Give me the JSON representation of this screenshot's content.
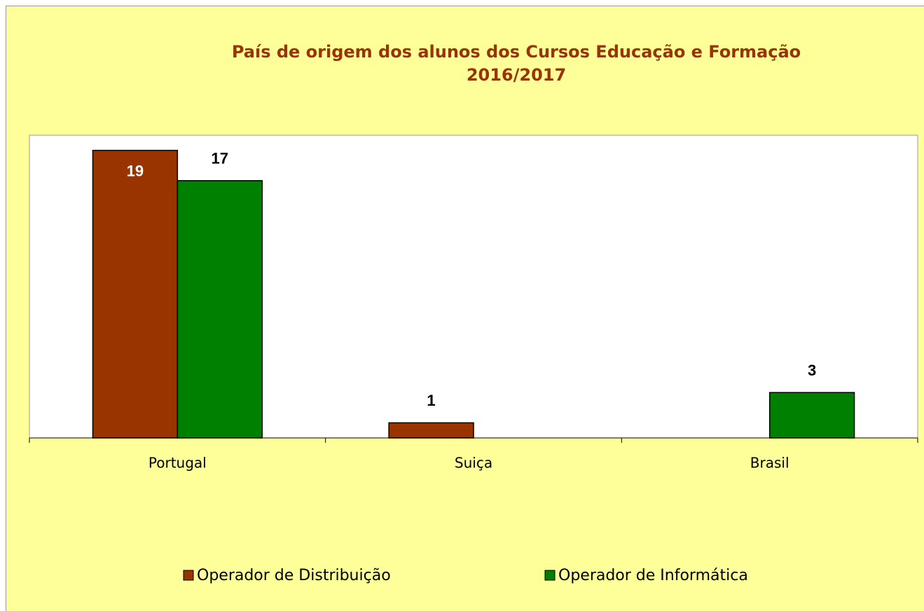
{
  "chart_data": {
    "type": "bar",
    "title": "País de origem dos alunos dos Cursos Educação e Formação 2016/2017",
    "categories": [
      "Portugal",
      "Suiça",
      "Brasil"
    ],
    "series": [
      {
        "name": "Operador de Distribuição",
        "color": "#993300",
        "values": [
          19,
          1,
          null
        ]
      },
      {
        "name": "Operador de Informática",
        "color": "#008000",
        "values": [
          17,
          null,
          3
        ]
      }
    ],
    "ylim": [
      0,
      20
    ],
    "legend": "bottom"
  }
}
